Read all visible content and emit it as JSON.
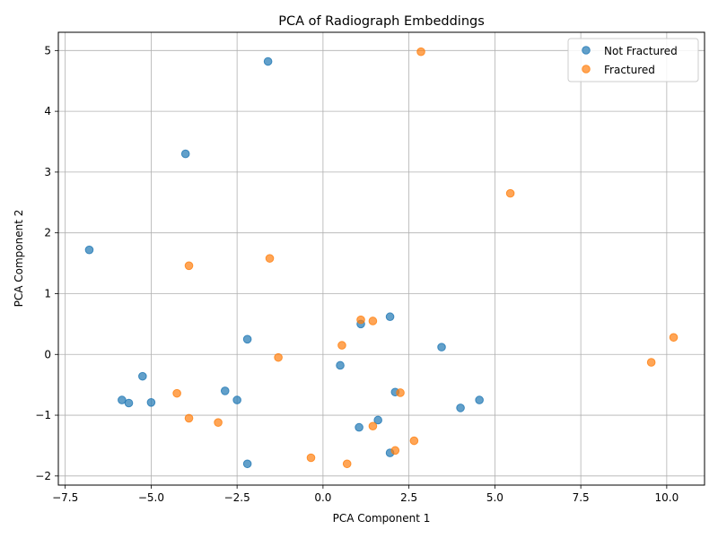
{
  "chart_data": {
    "type": "scatter",
    "title": "PCA of Radiograph Embeddings",
    "xlabel": "PCA Component 1",
    "ylabel": "PCA Component 2",
    "xlim": [
      -7.7,
      11.1
    ],
    "ylim": [
      -2.15,
      5.3
    ],
    "xticks": [
      -7.5,
      -5.0,
      -2.5,
      0.0,
      2.5,
      5.0,
      7.5,
      10.0
    ],
    "xtick_labels": [
      "−7.5",
      "−5.0",
      "−2.5",
      "0.0",
      "2.5",
      "5.0",
      "7.5",
      "10.0"
    ],
    "yticks": [
      -2,
      -1,
      0,
      1,
      2,
      3,
      4,
      5
    ],
    "ytick_labels": [
      "−2",
      "−1",
      "0",
      "1",
      "2",
      "3",
      "4",
      "5"
    ],
    "grid": true,
    "legend_position": "top-right",
    "series": [
      {
        "name": "Not Fractured",
        "color": "#1f77b4",
        "points": [
          [
            -1.6,
            4.82
          ],
          [
            -4.0,
            3.3
          ],
          [
            -6.8,
            1.72
          ],
          [
            1.95,
            0.62
          ],
          [
            1.1,
            0.5
          ],
          [
            -2.2,
            0.25
          ],
          [
            3.45,
            0.12
          ],
          [
            0.5,
            -0.18
          ],
          [
            -5.25,
            -0.36
          ],
          [
            -2.85,
            -0.6
          ],
          [
            2.1,
            -0.62
          ],
          [
            -2.5,
            -0.75
          ],
          [
            4.55,
            -0.75
          ],
          [
            -5.85,
            -0.75
          ],
          [
            -5.65,
            -0.8
          ],
          [
            -5.0,
            -0.79
          ],
          [
            4.0,
            -0.88
          ],
          [
            1.6,
            -1.08
          ],
          [
            1.05,
            -1.2
          ],
          [
            1.95,
            -1.62
          ],
          [
            -2.2,
            -1.8
          ]
        ]
      },
      {
        "name": "Fractured",
        "color": "#ff7f0e",
        "points": [
          [
            2.85,
            4.98
          ],
          [
            5.45,
            2.65
          ],
          [
            -3.9,
            1.46
          ],
          [
            -1.55,
            1.58
          ],
          [
            1.1,
            0.57
          ],
          [
            1.45,
            0.55
          ],
          [
            10.2,
            0.28
          ],
          [
            0.55,
            0.15
          ],
          [
            -1.3,
            -0.05
          ],
          [
            9.55,
            -0.13
          ],
          [
            2.25,
            -0.63
          ],
          [
            -4.25,
            -0.64
          ],
          [
            -3.9,
            -1.05
          ],
          [
            -3.05,
            -1.12
          ],
          [
            1.45,
            -1.18
          ],
          [
            2.65,
            -1.42
          ],
          [
            2.1,
            -1.58
          ],
          [
            -0.35,
            -1.7
          ],
          [
            0.7,
            -1.8
          ]
        ]
      }
    ]
  }
}
